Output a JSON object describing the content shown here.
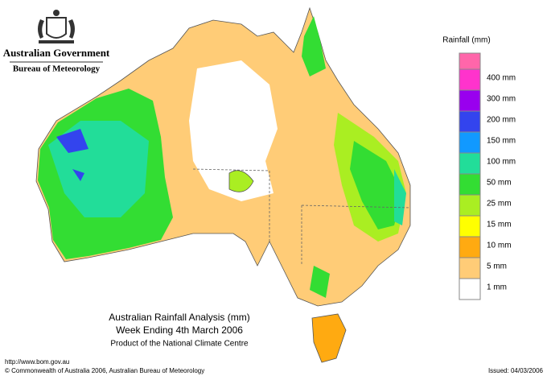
{
  "header": {
    "government": "Australian Government",
    "agency": "Bureau of Meteorology"
  },
  "map": {
    "title_lines": [
      "Australian Rainfall Analysis (mm)",
      "Week Ending 4th March 2006"
    ],
    "subtitle": "Product of the National Climate Centre"
  },
  "legend": {
    "title": "Rainfall (mm)",
    "overflow_color": "#ff66aa",
    "items": [
      {
        "label": "400 mm",
        "color": "#ff33cc"
      },
      {
        "label": "300 mm",
        "color": "#9900ee"
      },
      {
        "label": "200 mm",
        "color": "#3344ee"
      },
      {
        "label": "150 mm",
        "color": "#1199ff"
      },
      {
        "label": "100 mm",
        "color": "#22dd99"
      },
      {
        "label": "50 mm",
        "color": "#33dd33"
      },
      {
        "label": "25 mm",
        "color": "#aaee22"
      },
      {
        "label": "15 mm",
        "color": "#ffff00"
      },
      {
        "label": "10 mm",
        "color": "#ffaa11"
      },
      {
        "label": "5 mm",
        "color": "#ffcc77"
      },
      {
        "label": "1 mm",
        "color": "#ffffff"
      }
    ]
  },
  "footer": {
    "url": "http://www.bom.gov.au",
    "copyright": "© Commonwealth of Australia 2006, Australian Bureau of Meteorology",
    "issued": "Issued: 04/03/2006"
  }
}
